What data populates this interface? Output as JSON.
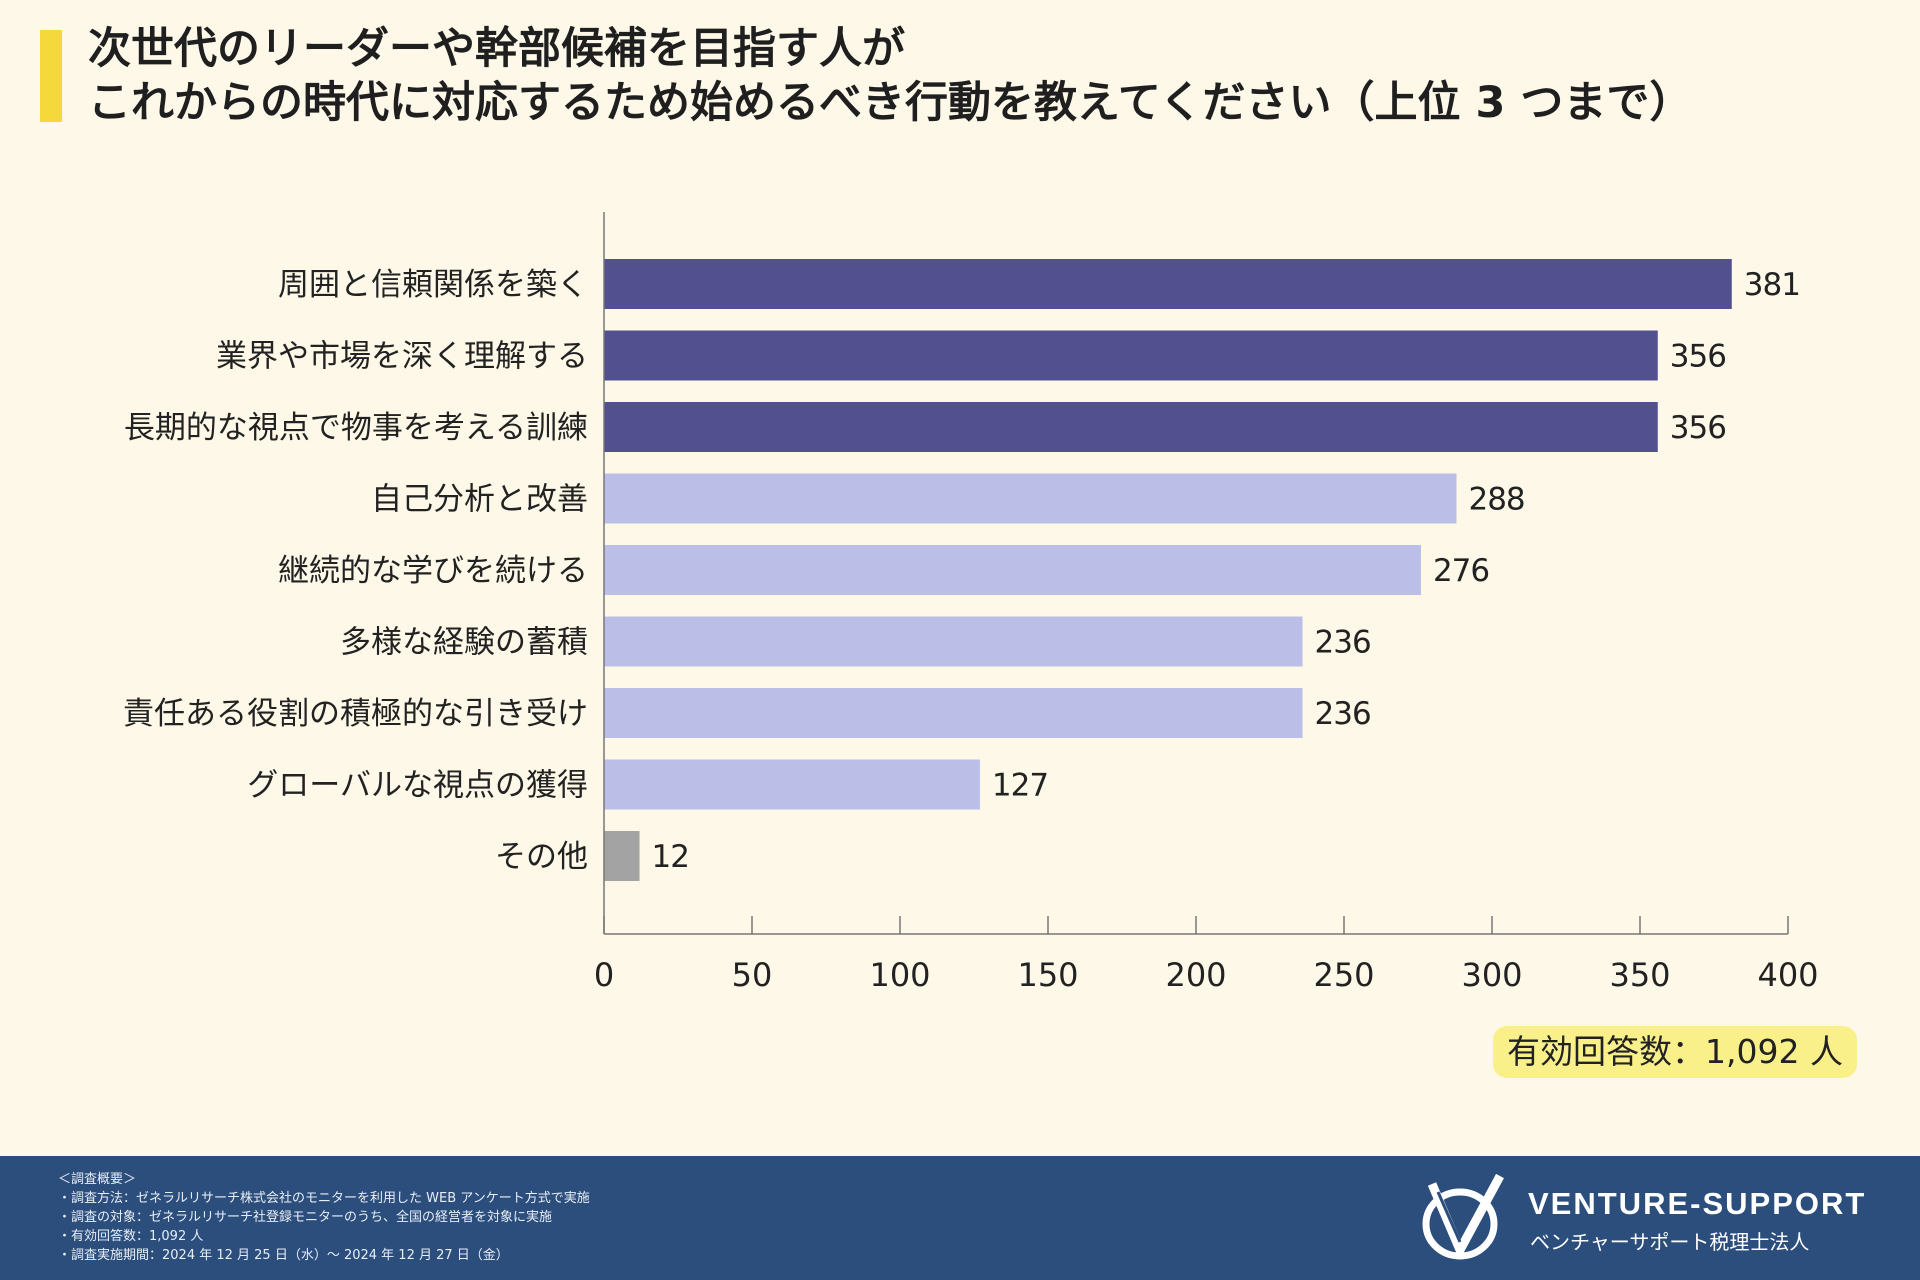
{
  "title": {
    "line1": "次世代のリーダーや幹部候補を目指す人が",
    "line2": "これからの時代に対応するため始めるべき行動を教えてください（上位 3 つまで）"
  },
  "respondents_label": "有効回答数：1,092 人",
  "colors": {
    "top": "#53508f",
    "mid": "#bbbfe8",
    "other": "#a3a3a3",
    "title_accent": "#f5d93a"
  },
  "chart_data": {
    "type": "bar",
    "orientation": "horizontal",
    "title": "次世代のリーダーや幹部候補を目指す人がこれからの時代に対応するため始めるべき行動を教えてください（上位 3 つまで）",
    "categories": [
      "周囲と信頼関係を築く",
      "業界や市場を深く理解する",
      "長期的な視点で物事を考える訓練",
      "自己分析と改善",
      "継続的な学びを続ける",
      "多様な経験の蓄積",
      "責任ある役割の積極的な引き受け",
      "グローバルな視点の獲得",
      "その他"
    ],
    "values": [
      381,
      356,
      356,
      288,
      276,
      236,
      236,
      127,
      12
    ],
    "color_groups": [
      "top",
      "top",
      "top",
      "mid",
      "mid",
      "mid",
      "mid",
      "mid",
      "other"
    ],
    "xlim": [
      0,
      400
    ],
    "xticks": [
      0,
      50,
      100,
      150,
      200,
      250,
      300,
      350,
      400
    ],
    "xlabel": "",
    "ylabel": "",
    "grid": false
  },
  "footer": {
    "notes": [
      "＜調査概要＞",
      "・調査方法：ゼネラルリサーチ株式会社のモニターを利用した WEB アンケート方式で実施",
      "・調査の対象：ゼネラルリサーチ社登録モニターのうち、全国の経営者を対象に実施",
      "・有効回答数：1,092 人",
      "・調査実施期間：2024 年 12 月 25 日（水）～ 2024 年 12 月 27 日（金）"
    ],
    "logo_name": "VENTURE-SUPPORT",
    "logo_sub": "ベンチャーサポート税理士法人"
  }
}
